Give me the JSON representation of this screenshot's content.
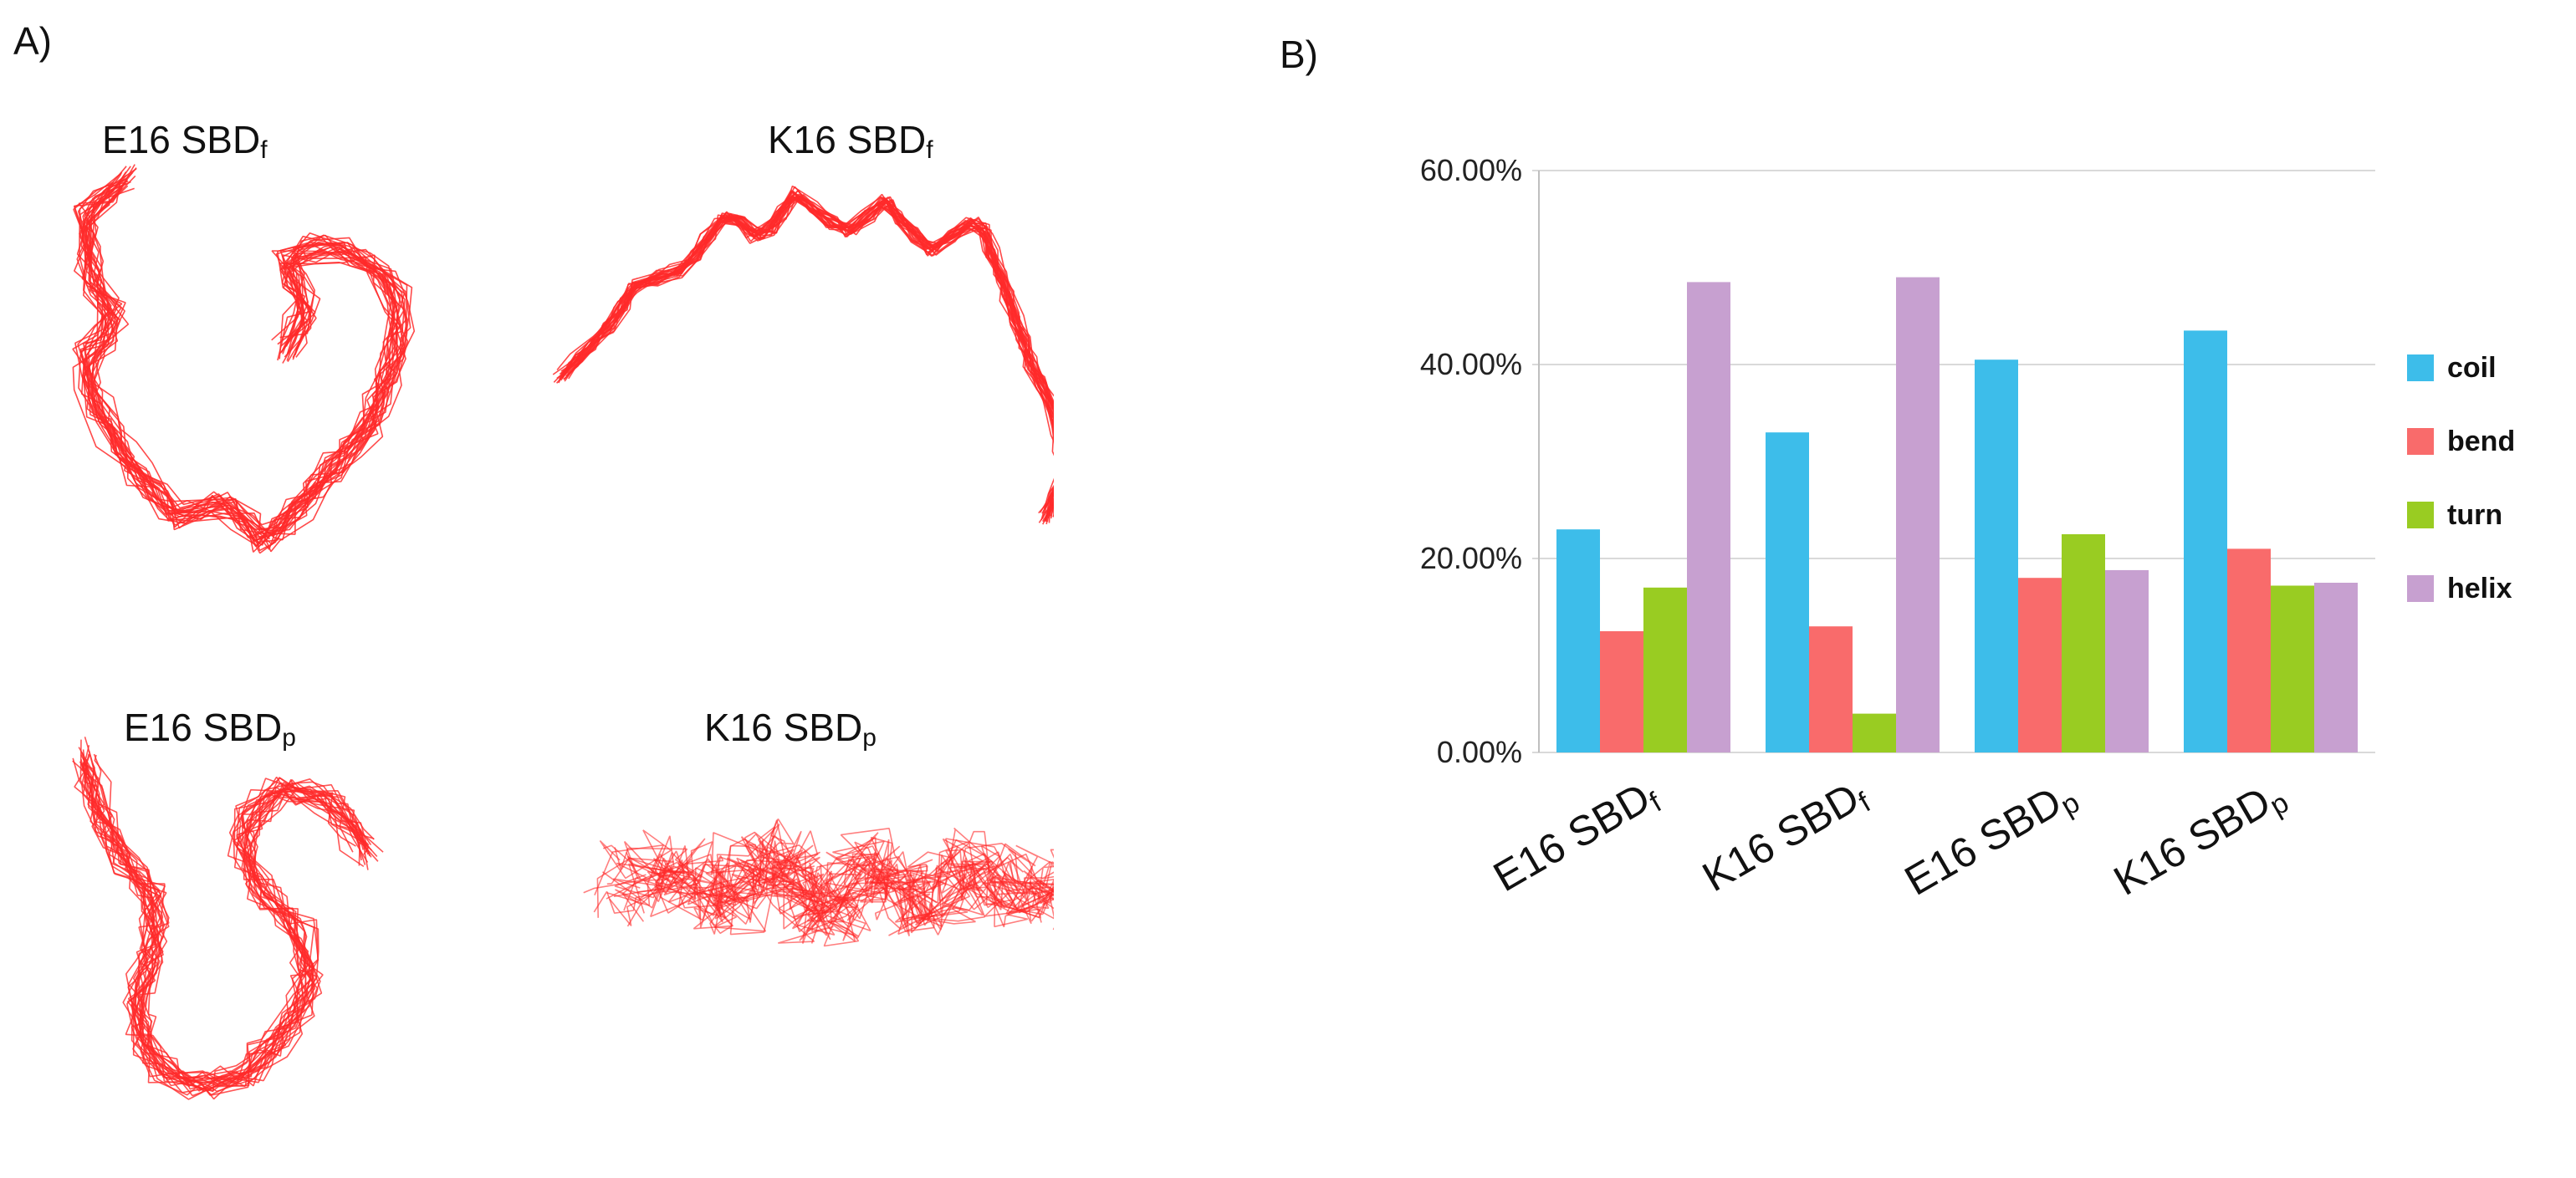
{
  "panels": {
    "a_label": "A)",
    "b_label": "B)"
  },
  "structures": [
    {
      "id": "e16f",
      "prefix": "E16 SBD",
      "suffix": "f",
      "style": "compact-v"
    },
    {
      "id": "k16f",
      "prefix": "K16 SBD",
      "suffix": "f",
      "style": "helix-arc"
    },
    {
      "id": "e16p",
      "prefix": "E16 SBD",
      "suffix": "p",
      "style": "compact-s"
    },
    {
      "id": "k16p",
      "prefix": "K16 SBD",
      "suffix": "p",
      "style": "diffuse"
    }
  ],
  "structure_line_color": "#ff2a2a",
  "chart_data": {
    "type": "bar",
    "categories": [
      {
        "prefix": "E16 SBD",
        "suffix": "f"
      },
      {
        "prefix": "K16 SBD",
        "suffix": "f"
      },
      {
        "prefix": "E16 SBD",
        "suffix": "p"
      },
      {
        "prefix": "K16 SBD",
        "suffix": "p"
      }
    ],
    "series": [
      {
        "name": "coil",
        "color": "#3dbdea",
        "values": [
          23.0,
          33.0,
          40.5,
          43.5
        ]
      },
      {
        "name": "bend",
        "color": "#f96b6b",
        "values": [
          12.5,
          13.0,
          18.0,
          21.0
        ]
      },
      {
        "name": "turn",
        "color": "#99cc22",
        "values": [
          17.0,
          4.0,
          22.5,
          17.2
        ]
      },
      {
        "name": "helix",
        "color": "#c7a0d0",
        "values": [
          48.5,
          49.0,
          18.8,
          17.5
        ]
      }
    ],
    "yticks": [
      "0.00%",
      "20.00%",
      "40.00%",
      "60.00%"
    ],
    "ylim": [
      0,
      60
    ],
    "grid": true,
    "legend": "right",
    "title": "",
    "xlabel": "",
    "ylabel": ""
  }
}
